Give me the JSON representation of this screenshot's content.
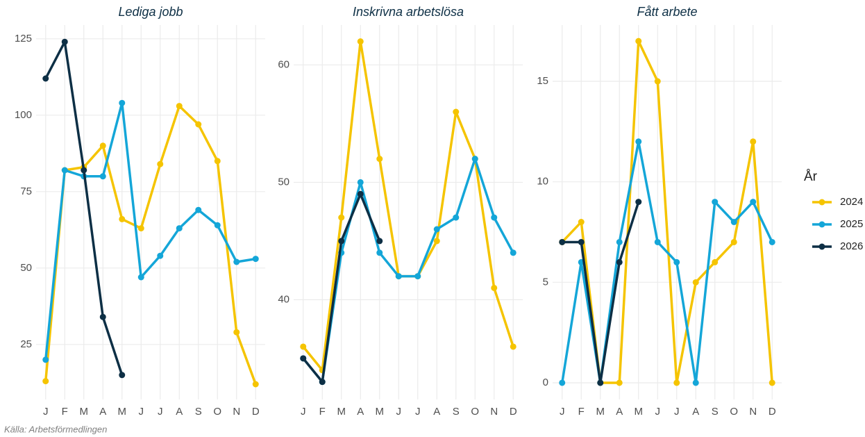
{
  "chart_data": [
    {
      "type": "line",
      "title": "Lediga jobb",
      "categories": [
        "J",
        "F",
        "M",
        "A",
        "M",
        "J",
        "J",
        "A",
        "S",
        "O",
        "N",
        "D"
      ],
      "ylim": [
        7,
        129.5
      ],
      "yticks": [
        25,
        50,
        75,
        100,
        125
      ],
      "grid": true,
      "series": [
        {
          "name": "2024",
          "color": "#f5c400",
          "values": [
            13,
            82,
            83,
            90,
            66,
            63,
            84,
            103,
            97,
            85,
            29,
            12
          ]
        },
        {
          "name": "2025",
          "color": "#14a6d8",
          "values": [
            20,
            82,
            80,
            80,
            104,
            47,
            54,
            63,
            69,
            64,
            52,
            53
          ]
        },
        {
          "name": "2026",
          "color": "#0d2f45",
          "values": [
            112,
            124,
            82,
            34,
            15,
            null,
            null,
            null,
            null,
            null,
            null,
            null
          ]
        }
      ]
    },
    {
      "type": "line",
      "title": "Inskrivna arbetslösa",
      "categories": [
        "J",
        "F",
        "M",
        "A",
        "M",
        "J",
        "J",
        "A",
        "S",
        "O",
        "N",
        "D"
      ],
      "ylim": [
        31.5,
        63.4
      ],
      "yticks": [
        40,
        50,
        60
      ],
      "grid": true,
      "series": [
        {
          "name": "2024",
          "color": "#f5c400",
          "values": [
            36,
            34,
            47,
            62,
            52,
            42,
            42,
            45,
            56,
            52,
            41,
            36
          ]
        },
        {
          "name": "2025",
          "color": "#14a6d8",
          "values": [
            35,
            33,
            44,
            50,
            44,
            42,
            42,
            46,
            47,
            52,
            47,
            44
          ]
        },
        {
          "name": "2026",
          "color": "#0d2f45",
          "values": [
            35,
            33,
            45,
            49,
            45,
            null,
            null,
            null,
            null,
            null,
            null,
            null
          ]
        }
      ]
    },
    {
      "type": "line",
      "title": "Fått arbete",
      "categories": [
        "J",
        "F",
        "M",
        "A",
        "M",
        "J",
        "J",
        "A",
        "S",
        "O",
        "N",
        "D"
      ],
      "ylim": [
        -0.83,
        17.8
      ],
      "yticks": [
        0,
        5,
        10,
        15
      ],
      "grid": true,
      "series": [
        {
          "name": "2024",
          "color": "#f5c400",
          "values": [
            7,
            8,
            0,
            0,
            17,
            15,
            0,
            5,
            6,
            7,
            12,
            0
          ]
        },
        {
          "name": "2025",
          "color": "#14a6d8",
          "values": [
            0,
            6,
            0,
            7,
            12,
            7,
            6,
            0,
            9,
            8,
            9,
            7
          ]
        },
        {
          "name": "2026",
          "color": "#0d2f45",
          "values": [
            7,
            7,
            0,
            6,
            9,
            null,
            null,
            null,
            null,
            null,
            null,
            null
          ]
        }
      ]
    }
  ],
  "legend": {
    "title": "År",
    "position": "right"
  },
  "caption": "Källa: Arbetsförmedlingen"
}
